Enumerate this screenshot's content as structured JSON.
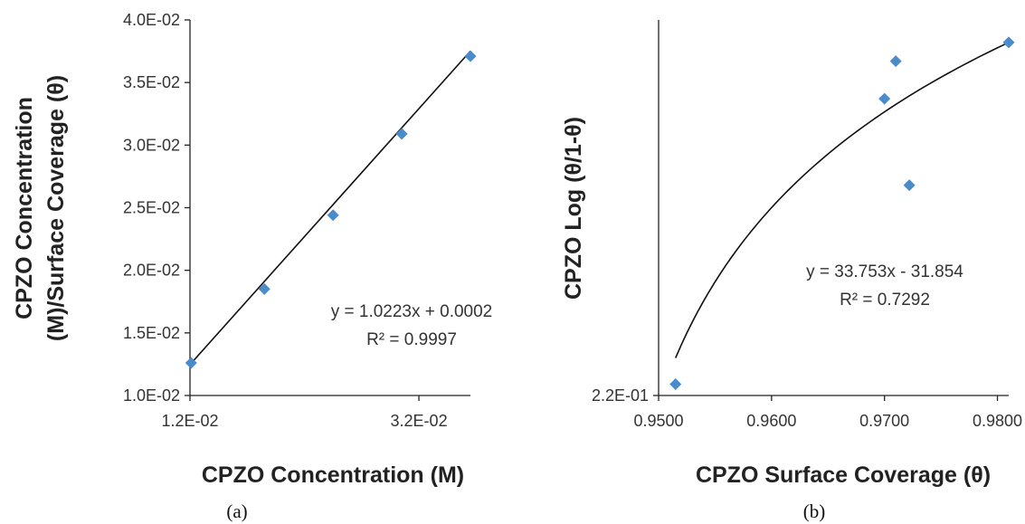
{
  "chart_data": [
    {
      "type": "scatter",
      "panel_label": "(a)",
      "xlabel": "CPZO Concentration (M)",
      "ylabel_lines": [
        "CPZO Concentration",
        "(M)/Surface Coverage (θ)"
      ],
      "x_ticks": [
        "1.2E-02",
        "3.2E-02"
      ],
      "x_tick_values": [
        0.012,
        0.032
      ],
      "xlim": [
        0.012,
        0.0365
      ],
      "y_ticks": [
        "1.0E-02",
        "1.5E-02",
        "2.0E-02",
        "2.5E-02",
        "3.0E-02",
        "3.5E-02",
        "4.0E-02"
      ],
      "y_tick_values": [
        0.01,
        0.015,
        0.02,
        0.025,
        0.03,
        0.035,
        0.04
      ],
      "ylim": [
        0.01,
        0.04
      ],
      "points": [
        {
          "x": 0.0121,
          "y": 0.0126
        },
        {
          "x": 0.0185,
          "y": 0.0185
        },
        {
          "x": 0.0245,
          "y": 0.0244
        },
        {
          "x": 0.0305,
          "y": 0.0309
        },
        {
          "x": 0.0365,
          "y": 0.0371
        }
      ],
      "trendline": {
        "type": "linear",
        "slope": 1.0223,
        "intercept": 0.0002,
        "x_range": [
          0.0121,
          0.0365
        ]
      },
      "equation": "y = 1.0223x + 0.0002",
      "r_squared": "R² = 0.9997"
    },
    {
      "type": "scatter",
      "panel_label": "(b)",
      "xlabel": "CPZO Surface Coverage (θ)",
      "ylabel": "CPZO Log (θ/1-θ)",
      "x_ticks": [
        "0.9500",
        "0.9600",
        "0.9700",
        "0.9800"
      ],
      "x_tick_values": [
        0.95,
        0.96,
        0.97,
        0.98
      ],
      "xlim": [
        0.95,
        0.981
      ],
      "y_ticks": [
        "2.2E-01"
      ],
      "points": [
        {
          "x": 0.9515,
          "y": 0.03
        },
        {
          "x": 0.97,
          "y": 0.79
        },
        {
          "x": 0.971,
          "y": 0.89
        },
        {
          "x": 0.9722,
          "y": 0.56
        },
        {
          "x": 0.981,
          "y": 0.94
        }
      ],
      "trendline": {
        "type": "curve",
        "x_range": [
          0.9515,
          0.981
        ],
        "y_at_start": 0.1,
        "y_at_end": 0.94
      },
      "equation": "y = 33.753x - 31.854",
      "r_squared": "R² = 0.7292"
    }
  ]
}
